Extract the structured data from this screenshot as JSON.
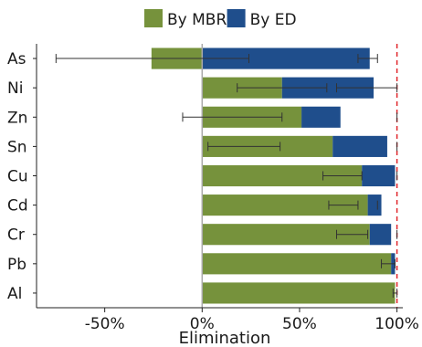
{
  "chart_data": {
    "type": "bar",
    "orientation": "horizontal",
    "stacked": true,
    "categories": [
      "As",
      "Ni",
      "Zn",
      "Sn",
      "Cu",
      "Cd",
      "Cr",
      "Pb",
      "Al"
    ],
    "series": [
      {
        "name": "By MBR",
        "color": "#76923c",
        "values": [
          -26,
          41,
          51,
          67,
          82,
          85,
          86,
          97,
          99
        ],
        "error": [
          [
            -75,
            24
          ],
          [
            18,
            64
          ],
          [
            -10,
            41
          ],
          [
            3,
            40
          ],
          [
            62,
            82
          ],
          [
            65,
            80
          ],
          [
            69,
            85
          ],
          [
            92,
            99
          ],
          [
            98,
            100
          ]
        ]
      },
      {
        "name": "By ED",
        "color": "#1f4e8c",
        "values": [
          86,
          47,
          20,
          28,
          17,
          7,
          11,
          2,
          0
        ],
        "error": [
          [
            80,
            90
          ],
          [
            69,
            100
          ],
          [
            null,
            100
          ],
          [
            null,
            100
          ],
          [
            null,
            100
          ],
          [
            null,
            90
          ],
          [
            null,
            100
          ],
          [
            null,
            99
          ],
          [
            null,
            null
          ]
        ]
      }
    ],
    "xlabel": "Elimination",
    "ylabel": "",
    "xticks": [
      "-50%",
      "0%",
      "50%",
      "100%"
    ],
    "xtick_values": [
      -50,
      0,
      50,
      100
    ],
    "xlim": [
      -85,
      103
    ],
    "reference_lines": [
      {
        "value": 0,
        "style": "solid",
        "color": "#aaaaaa"
      },
      {
        "value": 100,
        "style": "dashed",
        "color": "#e0262b"
      }
    ],
    "legend": "top",
    "grid": false
  }
}
